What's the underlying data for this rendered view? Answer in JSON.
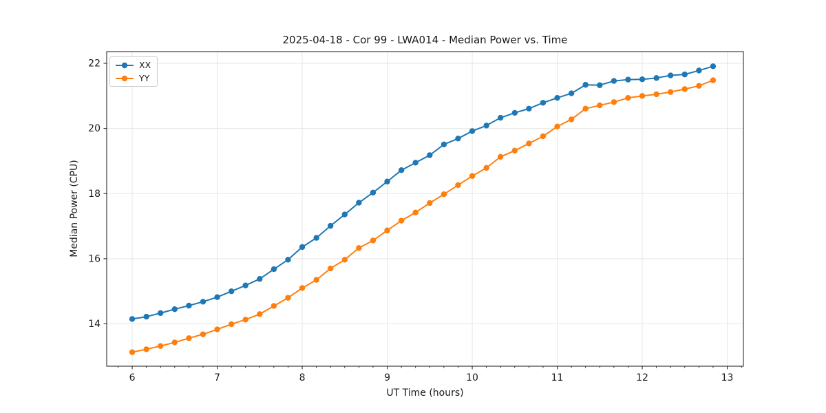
{
  "chart_data": {
    "type": "line",
    "title": "2025-04-18 - Cor 99 - LWA014 - Median Power vs. Time",
    "xlabel": "UT Time (hours)",
    "ylabel": "Median Power (CPU)",
    "xlim": [
      5.7,
      13.19
    ],
    "ylim": [
      12.7,
      22.36
    ],
    "xticks": [
      6,
      7,
      8,
      9,
      10,
      11,
      12,
      13
    ],
    "yticks": [
      14,
      16,
      18,
      20,
      22
    ],
    "x_minor_step": 0.1667,
    "grid": true,
    "grid_color": "#e6e6e6",
    "legend_position": "upper-left",
    "marker": "circle",
    "x": [
      6.0,
      6.167,
      6.333,
      6.5,
      6.667,
      6.833,
      7.0,
      7.167,
      7.333,
      7.5,
      7.667,
      7.833,
      8.0,
      8.167,
      8.333,
      8.5,
      8.667,
      8.833,
      9.0,
      9.167,
      9.333,
      9.5,
      9.667,
      9.833,
      10.0,
      10.167,
      10.333,
      10.5,
      10.667,
      10.833,
      11.0,
      11.167,
      11.333,
      11.5,
      11.667,
      11.833,
      12.0,
      12.167,
      12.333,
      12.5,
      12.667,
      12.833
    ],
    "series": [
      {
        "name": "XX",
        "color": "#1f77b4",
        "values": [
          14.15,
          14.22,
          14.33,
          14.45,
          14.56,
          14.68,
          14.82,
          15.0,
          15.18,
          15.38,
          15.68,
          15.97,
          16.36,
          16.64,
          17.01,
          17.36,
          17.72,
          18.03,
          18.37,
          18.72,
          18.95,
          19.18,
          19.51,
          19.69,
          19.92,
          20.09,
          20.33,
          20.48,
          20.61,
          20.79,
          20.94,
          21.08,
          21.34,
          21.33,
          21.46,
          21.5,
          21.51,
          21.55,
          21.63,
          21.66,
          21.78,
          21.91
        ]
      },
      {
        "name": "YY",
        "color": "#ff7f0e",
        "values": [
          13.13,
          13.22,
          13.32,
          13.43,
          13.56,
          13.68,
          13.83,
          13.99,
          14.13,
          14.3,
          14.55,
          14.8,
          15.1,
          15.35,
          15.7,
          15.97,
          16.33,
          16.56,
          16.87,
          17.17,
          17.42,
          17.71,
          17.98,
          18.26,
          18.54,
          18.79,
          19.13,
          19.32,
          19.54,
          19.76,
          20.06,
          20.28,
          20.61,
          20.71,
          20.81,
          20.94,
          21.0,
          21.05,
          21.12,
          21.21,
          21.31,
          21.48
        ]
      }
    ]
  }
}
